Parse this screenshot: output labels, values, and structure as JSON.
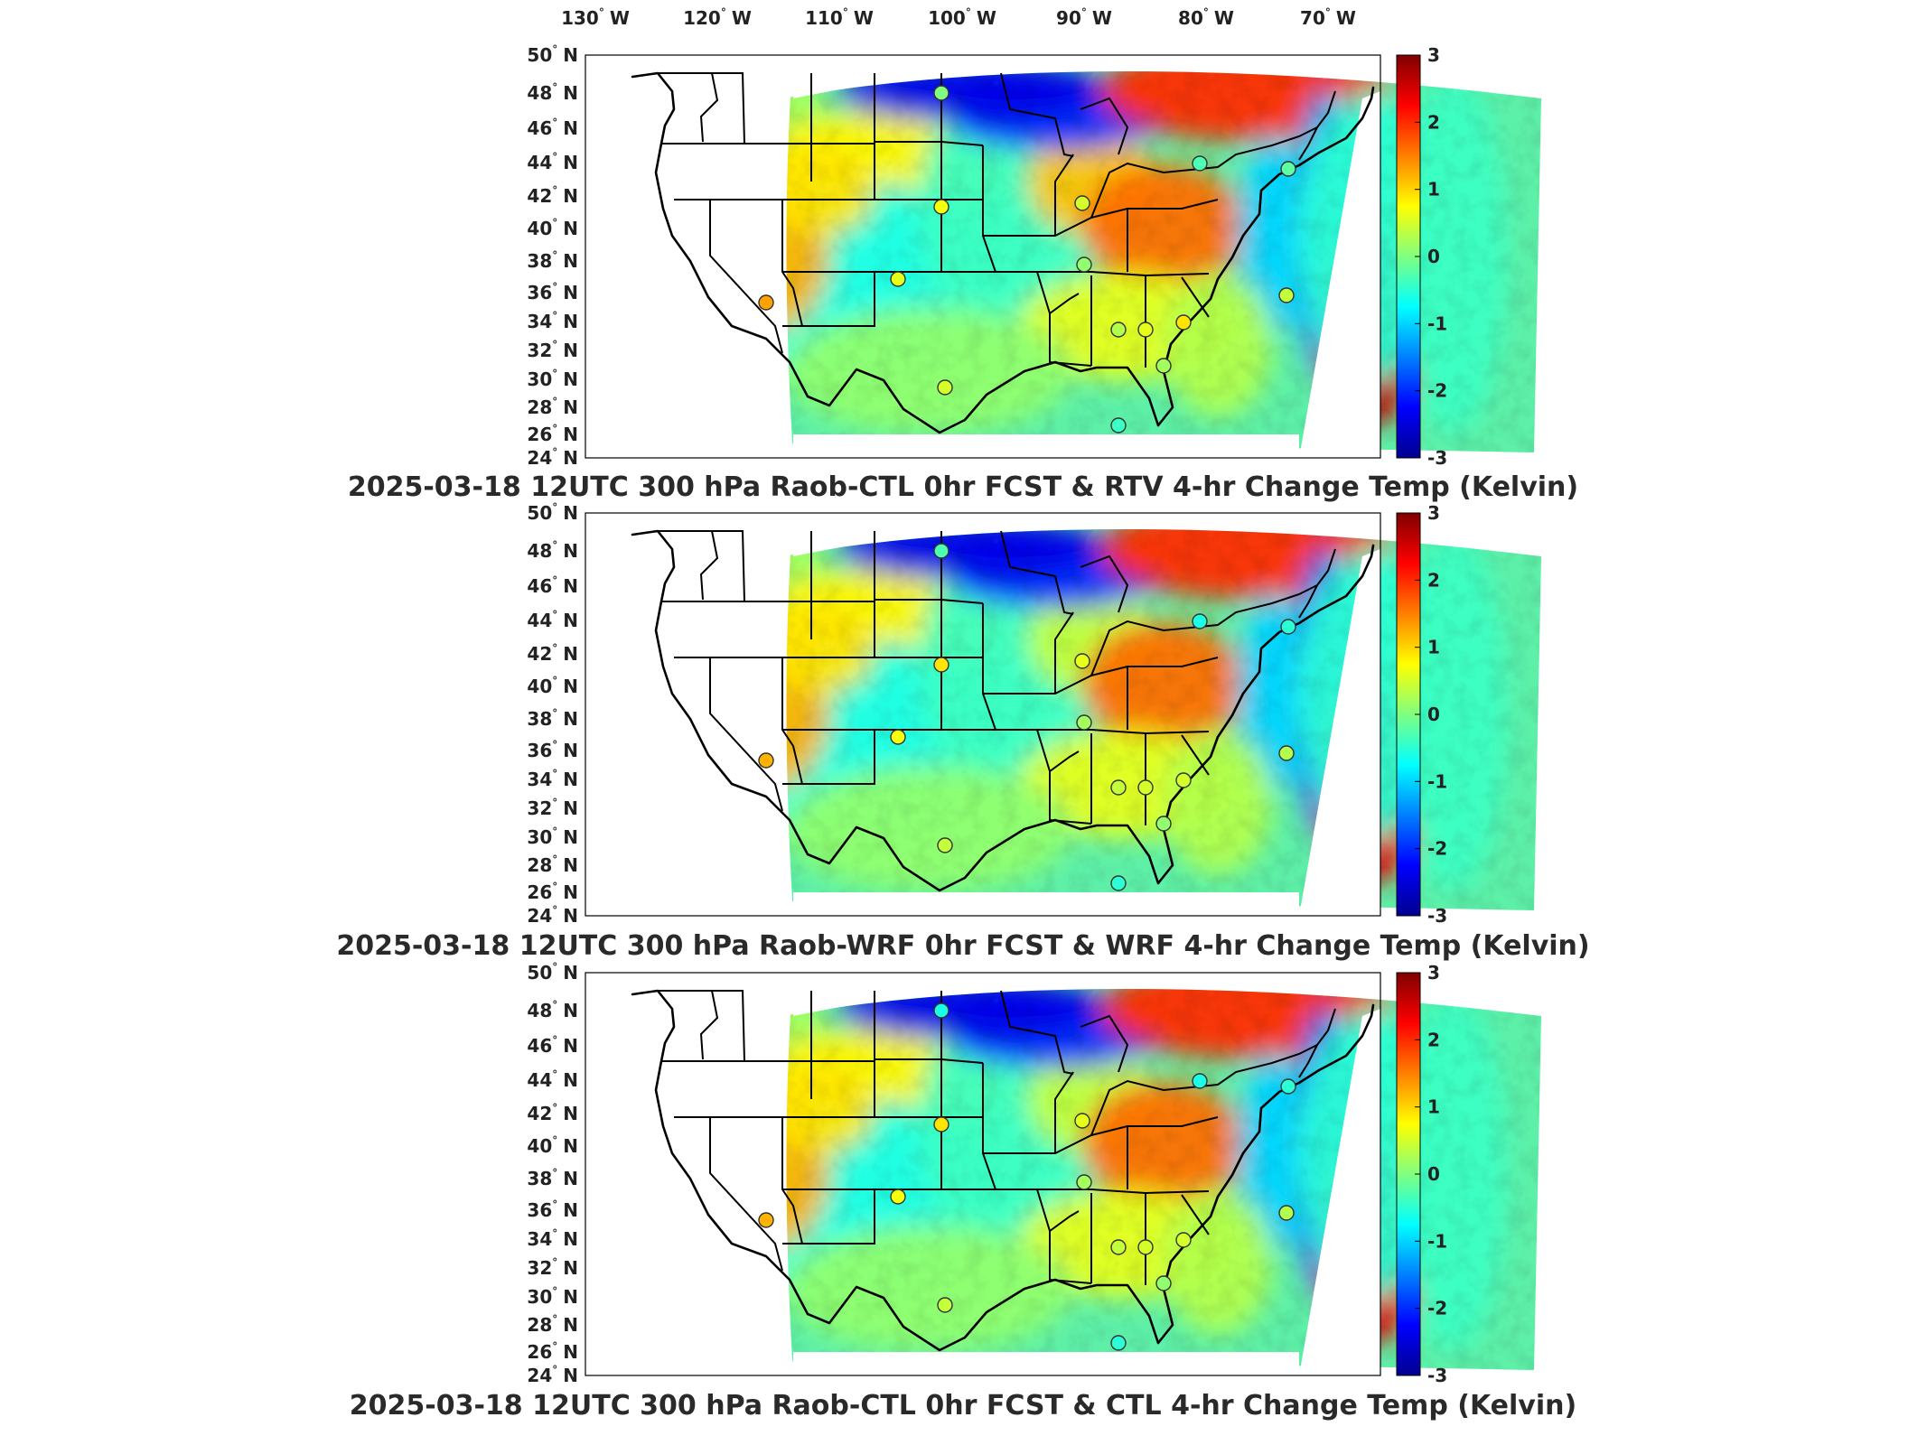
{
  "lon_labels": [
    {
      "deg": "130",
      "hemi": "W"
    },
    {
      "deg": "120",
      "hemi": "W"
    },
    {
      "deg": "110",
      "hemi": "W"
    },
    {
      "deg": "100",
      "hemi": "W"
    },
    {
      "deg": "90",
      "hemi": "W"
    },
    {
      "deg": "80",
      "hemi": "W"
    },
    {
      "deg": "70",
      "hemi": "W"
    }
  ],
  "lat_labels": [
    {
      "deg": "50",
      "hemi": "N"
    },
    {
      "deg": "48",
      "hemi": "N"
    },
    {
      "deg": "46",
      "hemi": "N"
    },
    {
      "deg": "44",
      "hemi": "N"
    },
    {
      "deg": "42",
      "hemi": "N"
    },
    {
      "deg": "40",
      "hemi": "N"
    },
    {
      "deg": "38",
      "hemi": "N"
    },
    {
      "deg": "36",
      "hemi": "N"
    },
    {
      "deg": "34",
      "hemi": "N"
    },
    {
      "deg": "32",
      "hemi": "N"
    },
    {
      "deg": "30",
      "hemi": "N"
    },
    {
      "deg": "28",
      "hemi": "N"
    },
    {
      "deg": "26",
      "hemi": "N"
    },
    {
      "deg": "24",
      "hemi": "N"
    }
  ],
  "colorbar": {
    "ticks": [
      "3",
      "2",
      "1",
      "0",
      "-1",
      "-2",
      "-3"
    ],
    "range": [
      -3,
      3
    ],
    "colormap": "jet"
  },
  "panels": [
    {
      "id": "rtv",
      "title": "2025-03-18 12UTC 300 hPa Raob-CTL 0hr FCST & RTV 4-hr Change Temp (Kelvin)",
      "stations": [
        0.0,
        0.7,
        0.6,
        1.3,
        0.5,
        0.1,
        0.3,
        0.6,
        0.9,
        0.2,
        0.4,
        -0.2,
        -0.3,
        -0.4,
        0.5
      ]
    },
    {
      "id": "wrf",
      "title": "2025-03-18 12UTC 300 hPa Raob-WRF 0hr FCST & WRF 4-hr Change Temp (Kelvin)",
      "stations": [
        -0.3,
        0.9,
        0.7,
        1.2,
        0.6,
        0.2,
        0.4,
        0.5,
        0.5,
        0.1,
        0.3,
        -0.5,
        -0.6,
        -0.5,
        0.4
      ]
    },
    {
      "id": "ctl",
      "title": "2025-03-18 12UTC 300 hPa Raob-CTL 0hr FCST & CTL 4-hr Change Temp (Kelvin)",
      "stations": [
        -0.6,
        0.9,
        0.7,
        1.2,
        0.6,
        0.2,
        0.4,
        0.5,
        0.5,
        0.1,
        0.3,
        -0.5,
        -0.6,
        -0.5,
        0.4
      ]
    }
  ]
}
